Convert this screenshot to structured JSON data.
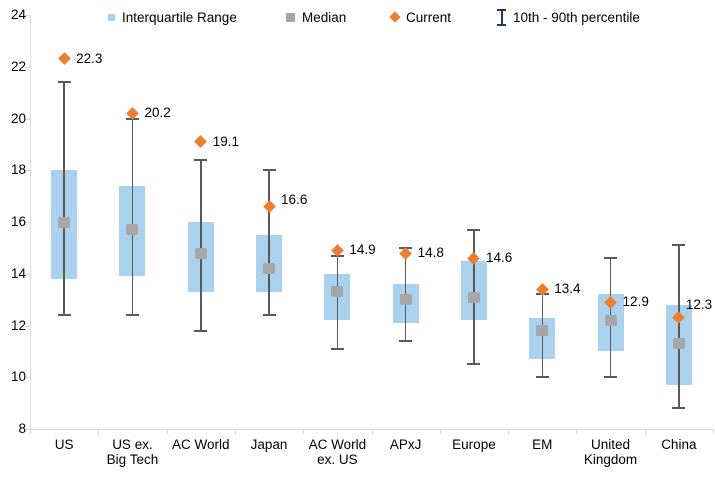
{
  "chart_data": {
    "type": "boxplot",
    "title": "",
    "xlabel": "",
    "ylabel": "",
    "ylim": [
      8,
      24
    ],
    "ytick_step": 2,
    "yticks": [
      "24",
      "22",
      "20",
      "18",
      "16",
      "14",
      "12",
      "10",
      "8"
    ],
    "grid": false,
    "legend_position": "top",
    "legend": [
      {
        "icon": "iqr-swatch",
        "label": "Interquartile Range"
      },
      {
        "icon": "median-swatch",
        "label": "Median"
      },
      {
        "icon": "current-diamond",
        "label": "Current"
      },
      {
        "icon": "percentile-errorbar",
        "label": "10th - 90th percentile"
      }
    ],
    "colors": {
      "box": "#AAD2EE",
      "median": "#A6A6A6",
      "whisker": "#595959",
      "current": "#ED7D31",
      "axis": "#D9D9D9",
      "errorbar_legend": "#1F3864",
      "text": "#000000"
    },
    "points": [
      {
        "category_lines": [
          "US"
        ],
        "p10": 12.4,
        "q1": 13.8,
        "median": 16.0,
        "q3": 18.0,
        "p90": 21.4,
        "current": 22.3,
        "current_label": "22.3"
      },
      {
        "category_lines": [
          "US ex.",
          "Big Tech"
        ],
        "p10": 12.4,
        "q1": 13.9,
        "median": 15.7,
        "q3": 17.4,
        "p90": 20.0,
        "current": 20.2,
        "current_label": "20.2"
      },
      {
        "category_lines": [
          "AC World"
        ],
        "p10": 11.8,
        "q1": 13.3,
        "median": 14.8,
        "q3": 16.0,
        "p90": 18.4,
        "current": 19.1,
        "current_label": "19.1"
      },
      {
        "category_lines": [
          "Japan"
        ],
        "p10": 12.4,
        "q1": 13.3,
        "median": 14.2,
        "q3": 15.5,
        "p90": 18.0,
        "current": 16.6,
        "current_label": "16.6",
        "label_dy": -6
      },
      {
        "category_lines": [
          "AC World",
          "ex. US"
        ],
        "p10": 11.1,
        "q1": 12.2,
        "median": 13.3,
        "q3": 14.0,
        "p90": 14.7,
        "current": 14.9,
        "current_label": "14.9"
      },
      {
        "category_lines": [
          "APxJ"
        ],
        "p10": 11.4,
        "q1": 12.1,
        "median": 13.0,
        "q3": 13.6,
        "p90": 15.0,
        "current": 14.8,
        "current_label": "14.8"
      },
      {
        "category_lines": [
          "Europe"
        ],
        "p10": 10.5,
        "q1": 12.2,
        "median": 13.1,
        "q3": 14.5,
        "p90": 15.7,
        "current": 14.6,
        "current_label": "14.6"
      },
      {
        "category_lines": [
          "EM"
        ],
        "p10": 10.0,
        "q1": 10.7,
        "median": 11.8,
        "q3": 12.3,
        "p90": 13.2,
        "current": 13.4,
        "current_label": "13.4"
      },
      {
        "category_lines": [
          "United",
          "Kingdom"
        ],
        "p10": 10.0,
        "q1": 11.0,
        "median": 12.2,
        "q3": 13.2,
        "p90": 14.6,
        "current": 12.9,
        "current_label": "12.9"
      },
      {
        "category_lines": [
          "China"
        ],
        "p10": 8.8,
        "q1": 9.7,
        "median": 11.3,
        "q3": 12.8,
        "p90": 15.1,
        "current": 12.3,
        "current_label": "12.3",
        "label_dx": 7,
        "label_dy": -13
      }
    ]
  }
}
